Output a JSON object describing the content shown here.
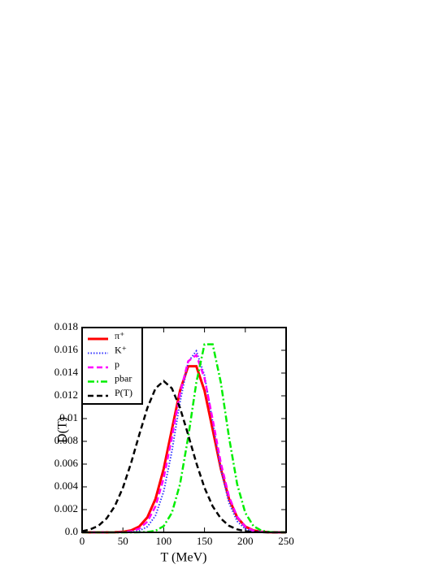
{
  "chart_data": {
    "type": "line",
    "xlabel": "T (MeV)",
    "ylabel": "D(T)",
    "x": [
      0,
      10,
      20,
      30,
      40,
      50,
      60,
      70,
      80,
      90,
      100,
      110,
      120,
      130,
      140,
      150,
      160,
      170,
      180,
      190,
      200,
      210,
      220,
      230,
      240,
      250
    ],
    "series": [
      {
        "name": "π⁺",
        "color": "#ff0000",
        "style": "solid",
        "values": [
          0,
          0,
          0,
          0,
          1e-05,
          5e-05,
          0.00017,
          0.00051,
          0.00132,
          0.00295,
          0.00559,
          0.00904,
          0.01245,
          0.0146,
          0.0146,
          0.01245,
          0.00904,
          0.00559,
          0.00295,
          0.00132,
          0.00051,
          0.00017,
          5e-05,
          1e-05,
          0,
          0
        ]
      },
      {
        "name": "K⁺",
        "color": "#3333ff",
        "style": "dotted",
        "values": [
          0,
          0,
          0,
          0,
          0,
          0,
          3e-05,
          0.00013,
          0.0005,
          0.00148,
          0.0036,
          0.00712,
          0.01145,
          0.01498,
          0.01594,
          0.01379,
          0.0097,
          0.00555,
          0.00259,
          0.00098,
          0.0003,
          8e-05,
          2e-05,
          0,
          0,
          0
        ]
      },
      {
        "name": "p",
        "color": "#ff00ff",
        "style": "dashed",
        "values": [
          0,
          0,
          0,
          0,
          0,
          2e-05,
          9e-05,
          0.00032,
          0.00094,
          0.0023,
          0.00478,
          0.00834,
          0.01221,
          0.01504,
          0.01558,
          0.01355,
          0.00992,
          0.0061,
          0.00315,
          0.00137,
          0.0005,
          0.00015,
          4e-05,
          1e-05,
          0,
          0
        ]
      },
      {
        "name": "pbar",
        "color": "#00ee00",
        "style": "dashdot",
        "values": [
          0,
          0,
          0,
          0,
          0,
          0,
          0,
          1e-05,
          3e-05,
          0.00014,
          0.00055,
          0.00171,
          0.00424,
          0.00837,
          0.01317,
          0.01653,
          0.01653,
          0.01317,
          0.00837,
          0.00424,
          0.00171,
          0.00055,
          0.00014,
          3e-05,
          1e-05,
          0
        ]
      },
      {
        "name": "P(T)",
        "color": "#000000",
        "style": "dashed",
        "values": [
          0.0001,
          0.00026,
          0.00058,
          0.00122,
          0.00229,
          0.00392,
          0.00609,
          0.00857,
          0.01094,
          0.01266,
          0.0133,
          0.01266,
          0.01094,
          0.00857,
          0.00609,
          0.00392,
          0.00229,
          0.00122,
          0.00058,
          0.00026,
          0.0001,
          4e-05,
          1e-05,
          0,
          0,
          0
        ]
      }
    ],
    "xlim": [
      0,
      250
    ],
    "xticks": [
      0,
      50,
      100,
      150,
      200,
      250
    ],
    "ylim": [
      0,
      0.018
    ],
    "yticks": [
      {
        "value": 0,
        "label": "0.0"
      },
      0.002,
      0.004,
      0.006,
      0.008,
      0.01,
      0.012,
      0.014,
      0.016,
      0.018
    ],
    "legend": "upper left",
    "grid": false
  }
}
